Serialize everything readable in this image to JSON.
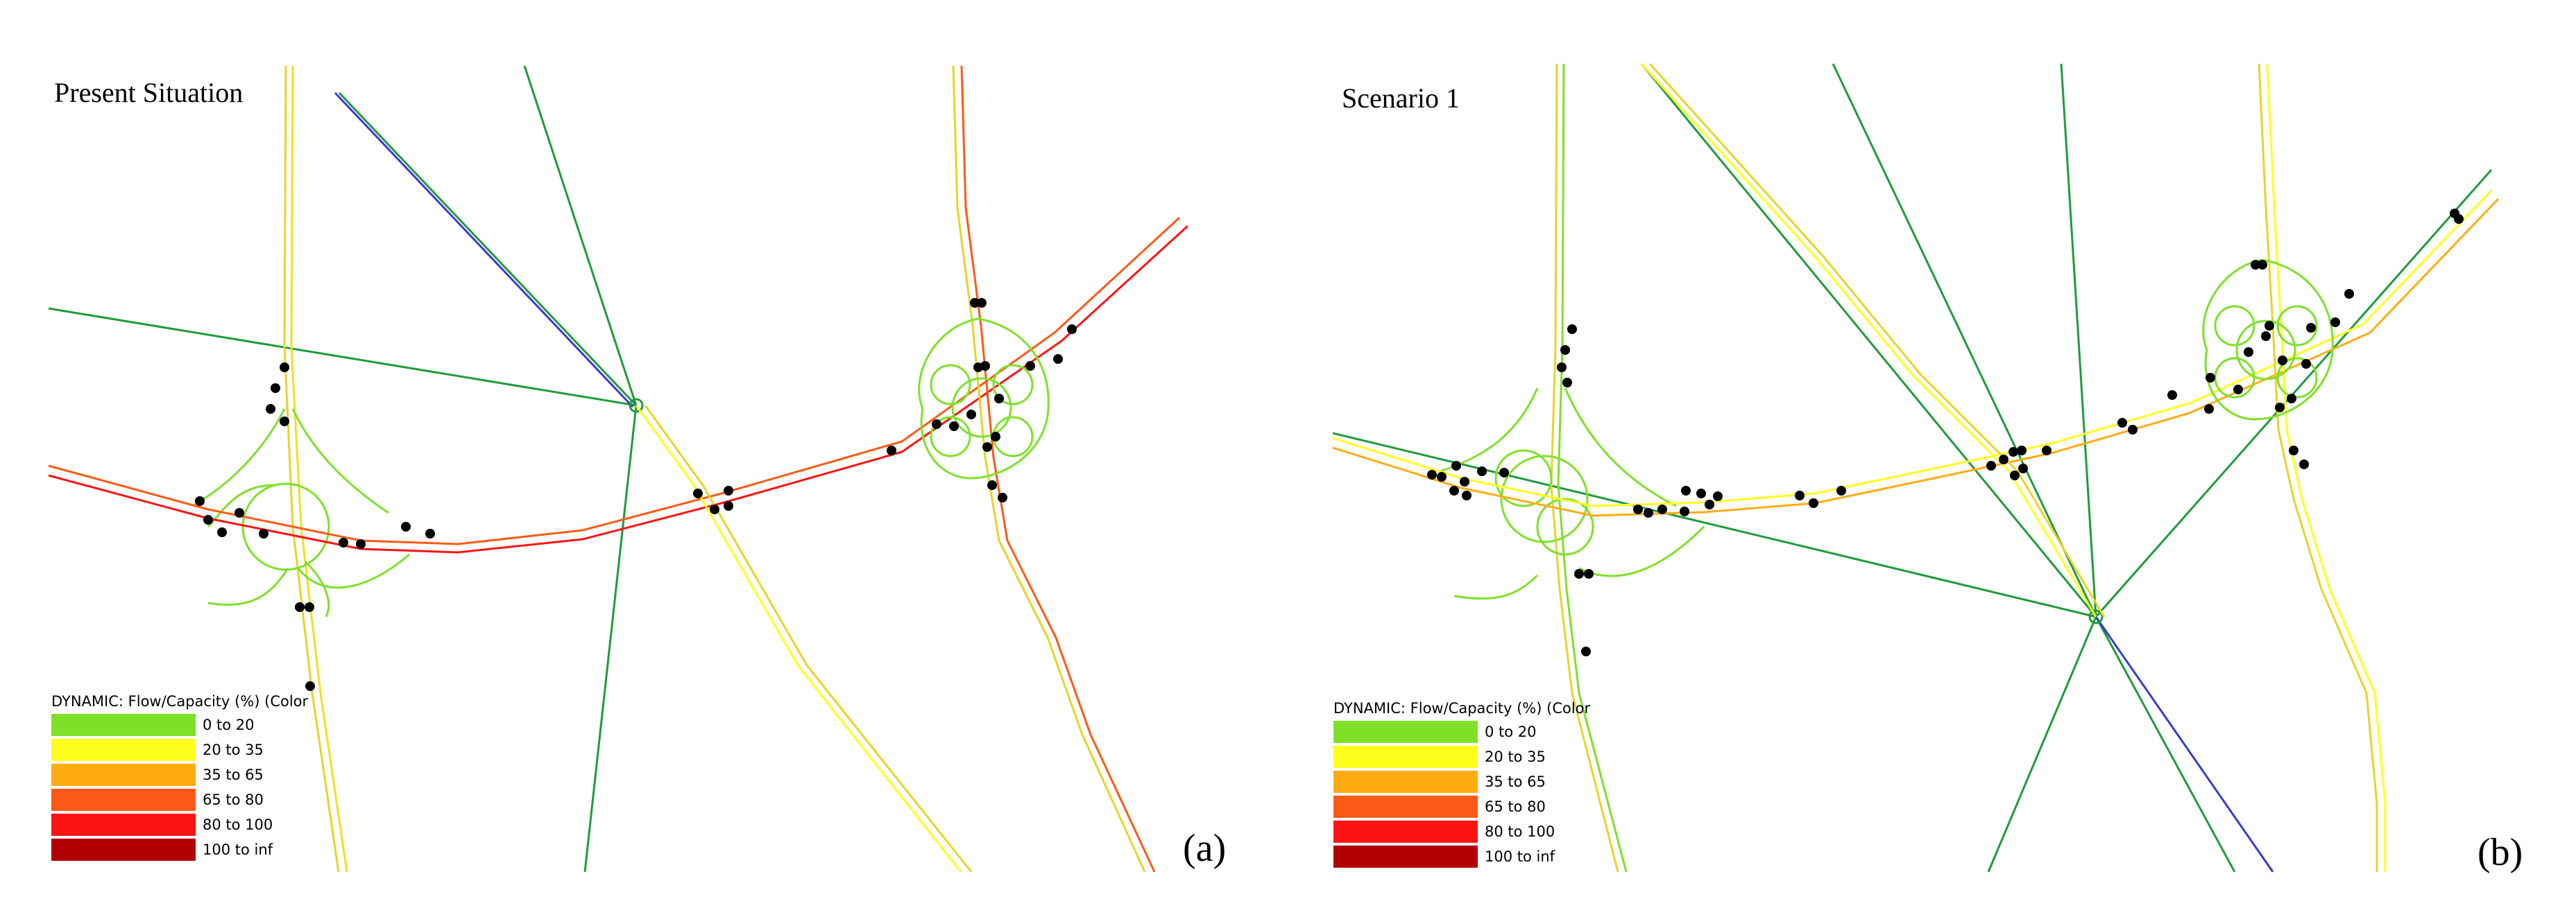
{
  "panels": [
    {
      "id": "a",
      "title": "Present Situation",
      "letter": "(a)"
    },
    {
      "id": "b",
      "title": "Scenario 1",
      "letter": "(b)"
    }
  ],
  "legend": {
    "title": "DYNAMIC: Flow/Capacity (%) (Color",
    "classes": [
      {
        "label": "0 to 20",
        "color": "#7fe02a"
      },
      {
        "label": "20 to 35",
        "color": "#ffff1e"
      },
      {
        "label": "35 to 65",
        "color": "#ffac12"
      },
      {
        "label": "65 to 80",
        "color": "#fb5a16"
      },
      {
        "label": "80 to 100",
        "color": "#fc1414"
      },
      {
        "label": "100 to inf",
        "color": "#b20000"
      }
    ]
  },
  "colors": {
    "connector": "#1f9b3c",
    "path_overlay": "#3a3ad0",
    "node": "#000000"
  }
}
